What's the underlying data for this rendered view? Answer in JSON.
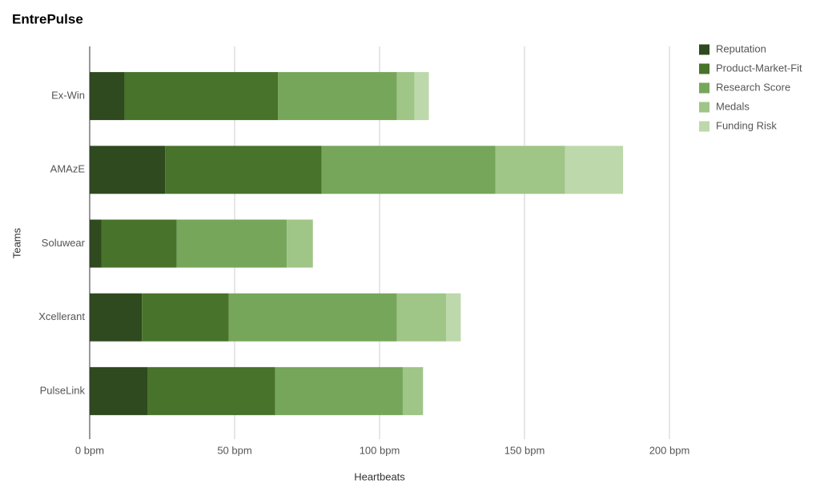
{
  "chart_data": {
    "type": "stacked-bar-horizontal",
    "title": "EntrePulse",
    "x_label": "Heartbeats",
    "y_label": "Teams",
    "categories": [
      "Ex-Win",
      "AMAzE",
      "Soluwear",
      "Xcellerant",
      "PulseLink"
    ],
    "series": [
      {
        "name": "Reputation",
        "color": "#2e4a1e",
        "values": [
          12,
          26,
          4,
          18,
          20
        ]
      },
      {
        "name": "Product-Market-Fit",
        "color": "#47732b",
        "values": [
          53,
          54,
          26,
          30,
          44
        ]
      },
      {
        "name": "Research Score",
        "color": "#76a65a",
        "values": [
          41,
          60,
          38,
          58,
          44
        ]
      },
      {
        "name": "Medals",
        "color": "#9fc587",
        "values": [
          6,
          24,
          9,
          17,
          7
        ]
      },
      {
        "name": "Funding Risk",
        "color": "#bdd8aa",
        "values": [
          5,
          20,
          0,
          5,
          0
        ]
      }
    ],
    "xlim": [
      0,
      200
    ],
    "xticks": [
      {
        "value": 0,
        "label": "0 bpm"
      },
      {
        "value": 50,
        "label": "50 bpm"
      },
      {
        "value": 100,
        "label": "100 bpm"
      },
      {
        "value": 150,
        "label": "150 bpm"
      },
      {
        "value": 200,
        "label": "200 bpm"
      }
    ],
    "grid": true,
    "legend": "right"
  }
}
